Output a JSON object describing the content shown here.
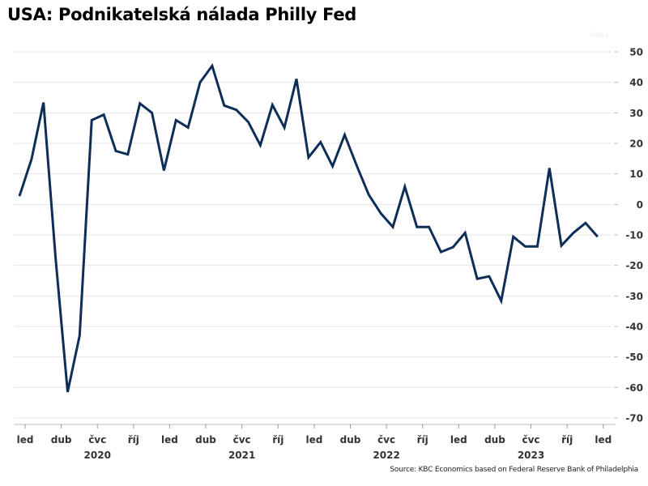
{
  "chart_data": {
    "type": "line",
    "title": "USA: Podnikatelská nálada Philly Fed",
    "source": "Source: KBC Economics based on Federal Reserve Bank of Philadelphia",
    "y_axis_hint": "index",
    "xlabel": "",
    "ylabel": "",
    "ylim": [
      -70,
      50
    ],
    "yticks": [
      50,
      40,
      30,
      20,
      10,
      0,
      -10,
      -20,
      -30,
      -40,
      -50,
      -60,
      -70
    ],
    "grid": true,
    "y_axis_position": "right",
    "x_start": "2020-01",
    "x_end": "2024-01",
    "x_month_labels": [
      {
        "label": "led",
        "month_index": 0
      },
      {
        "label": "dub",
        "month_index": 3
      },
      {
        "label": "čvc",
        "month_index": 6
      },
      {
        "label": "říj",
        "month_index": 9
      },
      {
        "label": "led",
        "month_index": 12
      },
      {
        "label": "dub",
        "month_index": 15
      },
      {
        "label": "čvc",
        "month_index": 18
      },
      {
        "label": "říj",
        "month_index": 21
      },
      {
        "label": "led",
        "month_index": 24
      },
      {
        "label": "dub",
        "month_index": 27
      },
      {
        "label": "čvc",
        "month_index": 30
      },
      {
        "label": "říj",
        "month_index": 33
      },
      {
        "label": "led",
        "month_index": 36
      },
      {
        "label": "dub",
        "month_index": 39
      },
      {
        "label": "čvc",
        "month_index": 42
      },
      {
        "label": "říj",
        "month_index": 45
      },
      {
        "label": "led",
        "month_index": 48
      }
    ],
    "x_year_labels": [
      {
        "label": "2020",
        "month_index": 6
      },
      {
        "label": "2021",
        "month_index": 18
      },
      {
        "label": "2022",
        "month_index": 30
      },
      {
        "label": "2023",
        "month_index": 42
      }
    ],
    "series": [
      {
        "name": "Philly Fed",
        "color": "#0e2d57",
        "values": [
          2.7,
          14.8,
          33.4,
          -17.5,
          -61.5,
          -43.0,
          27.6,
          29.4,
          17.5,
          16.4,
          33.1,
          30.0,
          11.1,
          27.6,
          25.2,
          40.0,
          45.4,
          32.4,
          31.0,
          27.0,
          19.4,
          32.6,
          25.2,
          41.1,
          15.4,
          20.4,
          12.5,
          22.8,
          12.7,
          3.2,
          -2.9,
          -7.4,
          5.8,
          -7.4,
          -7.4,
          -15.6,
          -14.0,
          -9.3,
          -24.4,
          -23.6,
          -31.6,
          -10.6,
          -13.8,
          -13.8,
          11.9,
          -13.5,
          -9.3,
          -6.1,
          -10.6
        ]
      }
    ]
  }
}
